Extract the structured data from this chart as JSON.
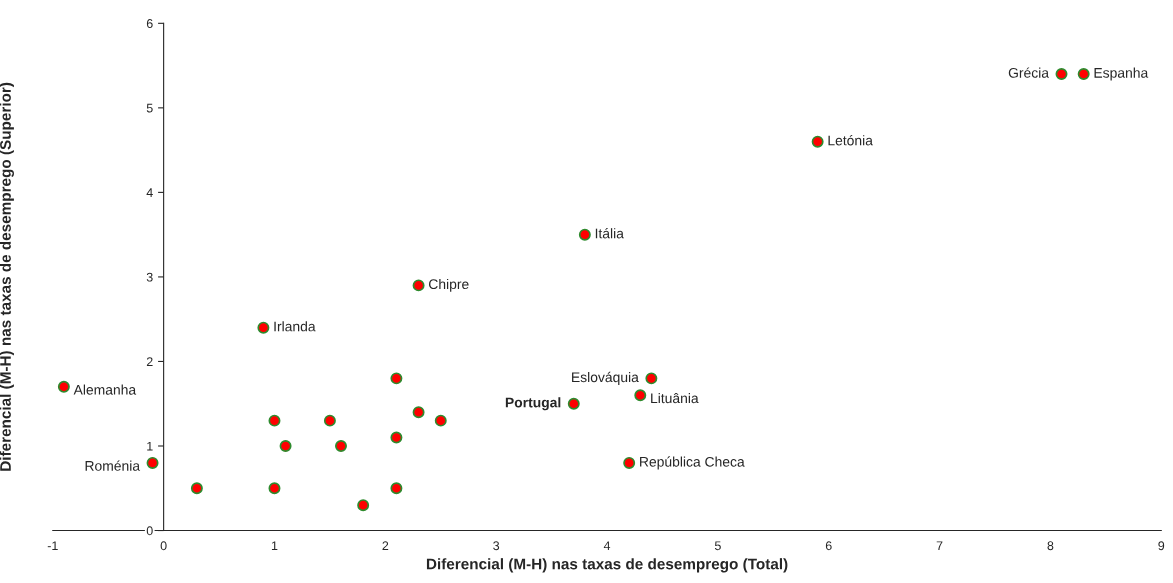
{
  "chart_data": {
    "type": "scatter",
    "xlabel": "Diferencial (M-H) nas taxas de desemprego (Total)",
    "ylabel": "Diferencial (M-H) nas taxas de desemprego (Superior)",
    "series": [
      {
        "color": "#ff0000",
        "x": [
          -0.9,
          -0.1,
          0.3,
          1.0,
          1.0,
          1.1,
          0.9,
          1.5,
          1.6,
          1.8,
          2.1,
          2.1,
          2.1,
          2.3,
          2.3,
          2.5,
          3.8,
          3.7,
          4.4,
          4.3,
          4.2,
          5.9,
          8.1,
          8.3
        ],
        "values": [
          1.7,
          0.8,
          0.5,
          0.5,
          1.3,
          1.0,
          2.4,
          1.3,
          1.0,
          0.3,
          1.8,
          1.1,
          0.5,
          1.4,
          2.9,
          1.3,
          3.5,
          1.5,
          1.8,
          1.6,
          0.8,
          4.6,
          5.4,
          5.4
        ]
      }
    ],
    "annotations": [
      {
        "text": "Alemanha",
        "x": -0.9,
        "y": 1.7
      },
      {
        "text": "Roménia",
        "x": -0.1,
        "y": 0.8
      },
      {
        "text": "Irlanda",
        "x": 0.9,
        "y": 2.4
      },
      {
        "text": "Chipre",
        "x": 2.3,
        "y": 2.9
      },
      {
        "text": "Itália",
        "x": 3.8,
        "y": 3.5
      },
      {
        "text": "Portugal",
        "x": 3.7,
        "y": 1.5
      },
      {
        "text": "Eslováquia",
        "x": 4.4,
        "y": 1.8
      },
      {
        "text": "Lituânia",
        "x": 4.3,
        "y": 1.6
      },
      {
        "text": "República Checa",
        "x": 4.2,
        "y": 0.8
      },
      {
        "text": "Letónia",
        "x": 5.9,
        "y": 4.6
      },
      {
        "text": "Grécia",
        "x": 8.1,
        "y": 5.4
      },
      {
        "text": "Espanha",
        "x": 8.3,
        "y": 5.4
      }
    ],
    "xlim": [
      -1,
      9
    ],
    "xticks": [
      -1,
      0,
      1,
      2,
      3,
      4,
      5,
      6,
      7,
      8,
      9
    ],
    "ylim": [
      0,
      6
    ],
    "yticks": [
      0,
      1,
      2,
      3,
      4,
      5,
      6
    ],
    "grid": false,
    "legend": false,
    "marker": "circle"
  }
}
